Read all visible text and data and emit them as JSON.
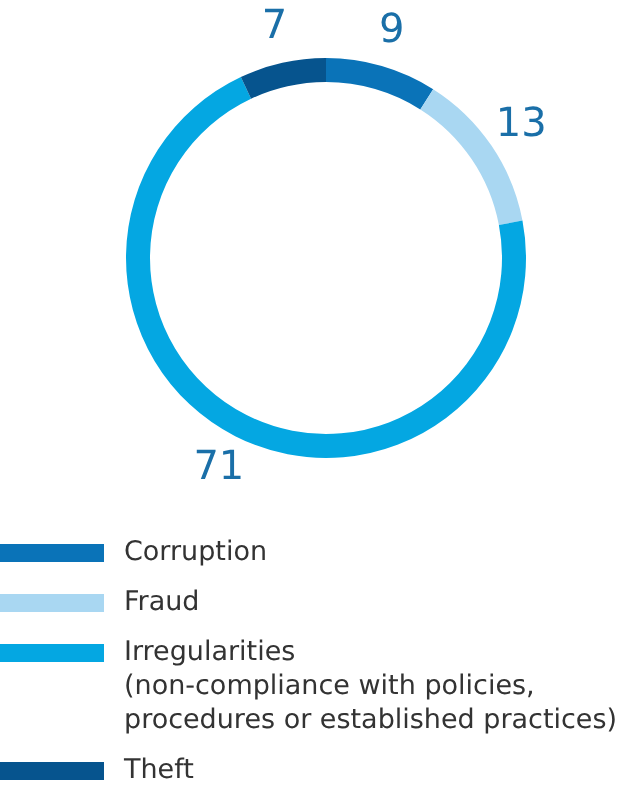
{
  "chart_data": {
    "type": "donut",
    "categories": [
      "Corruption",
      "Fraud",
      "Irregularities\n(non-compliance with policies,\nprocedures or established practices)",
      "Theft"
    ],
    "values": [
      9,
      13,
      71,
      7
    ],
    "colors": [
      "#0a73b8",
      "#a9d7f2",
      "#04a7e2",
      "#06548e"
    ],
    "data_labels": true,
    "legend": "bottom"
  }
}
